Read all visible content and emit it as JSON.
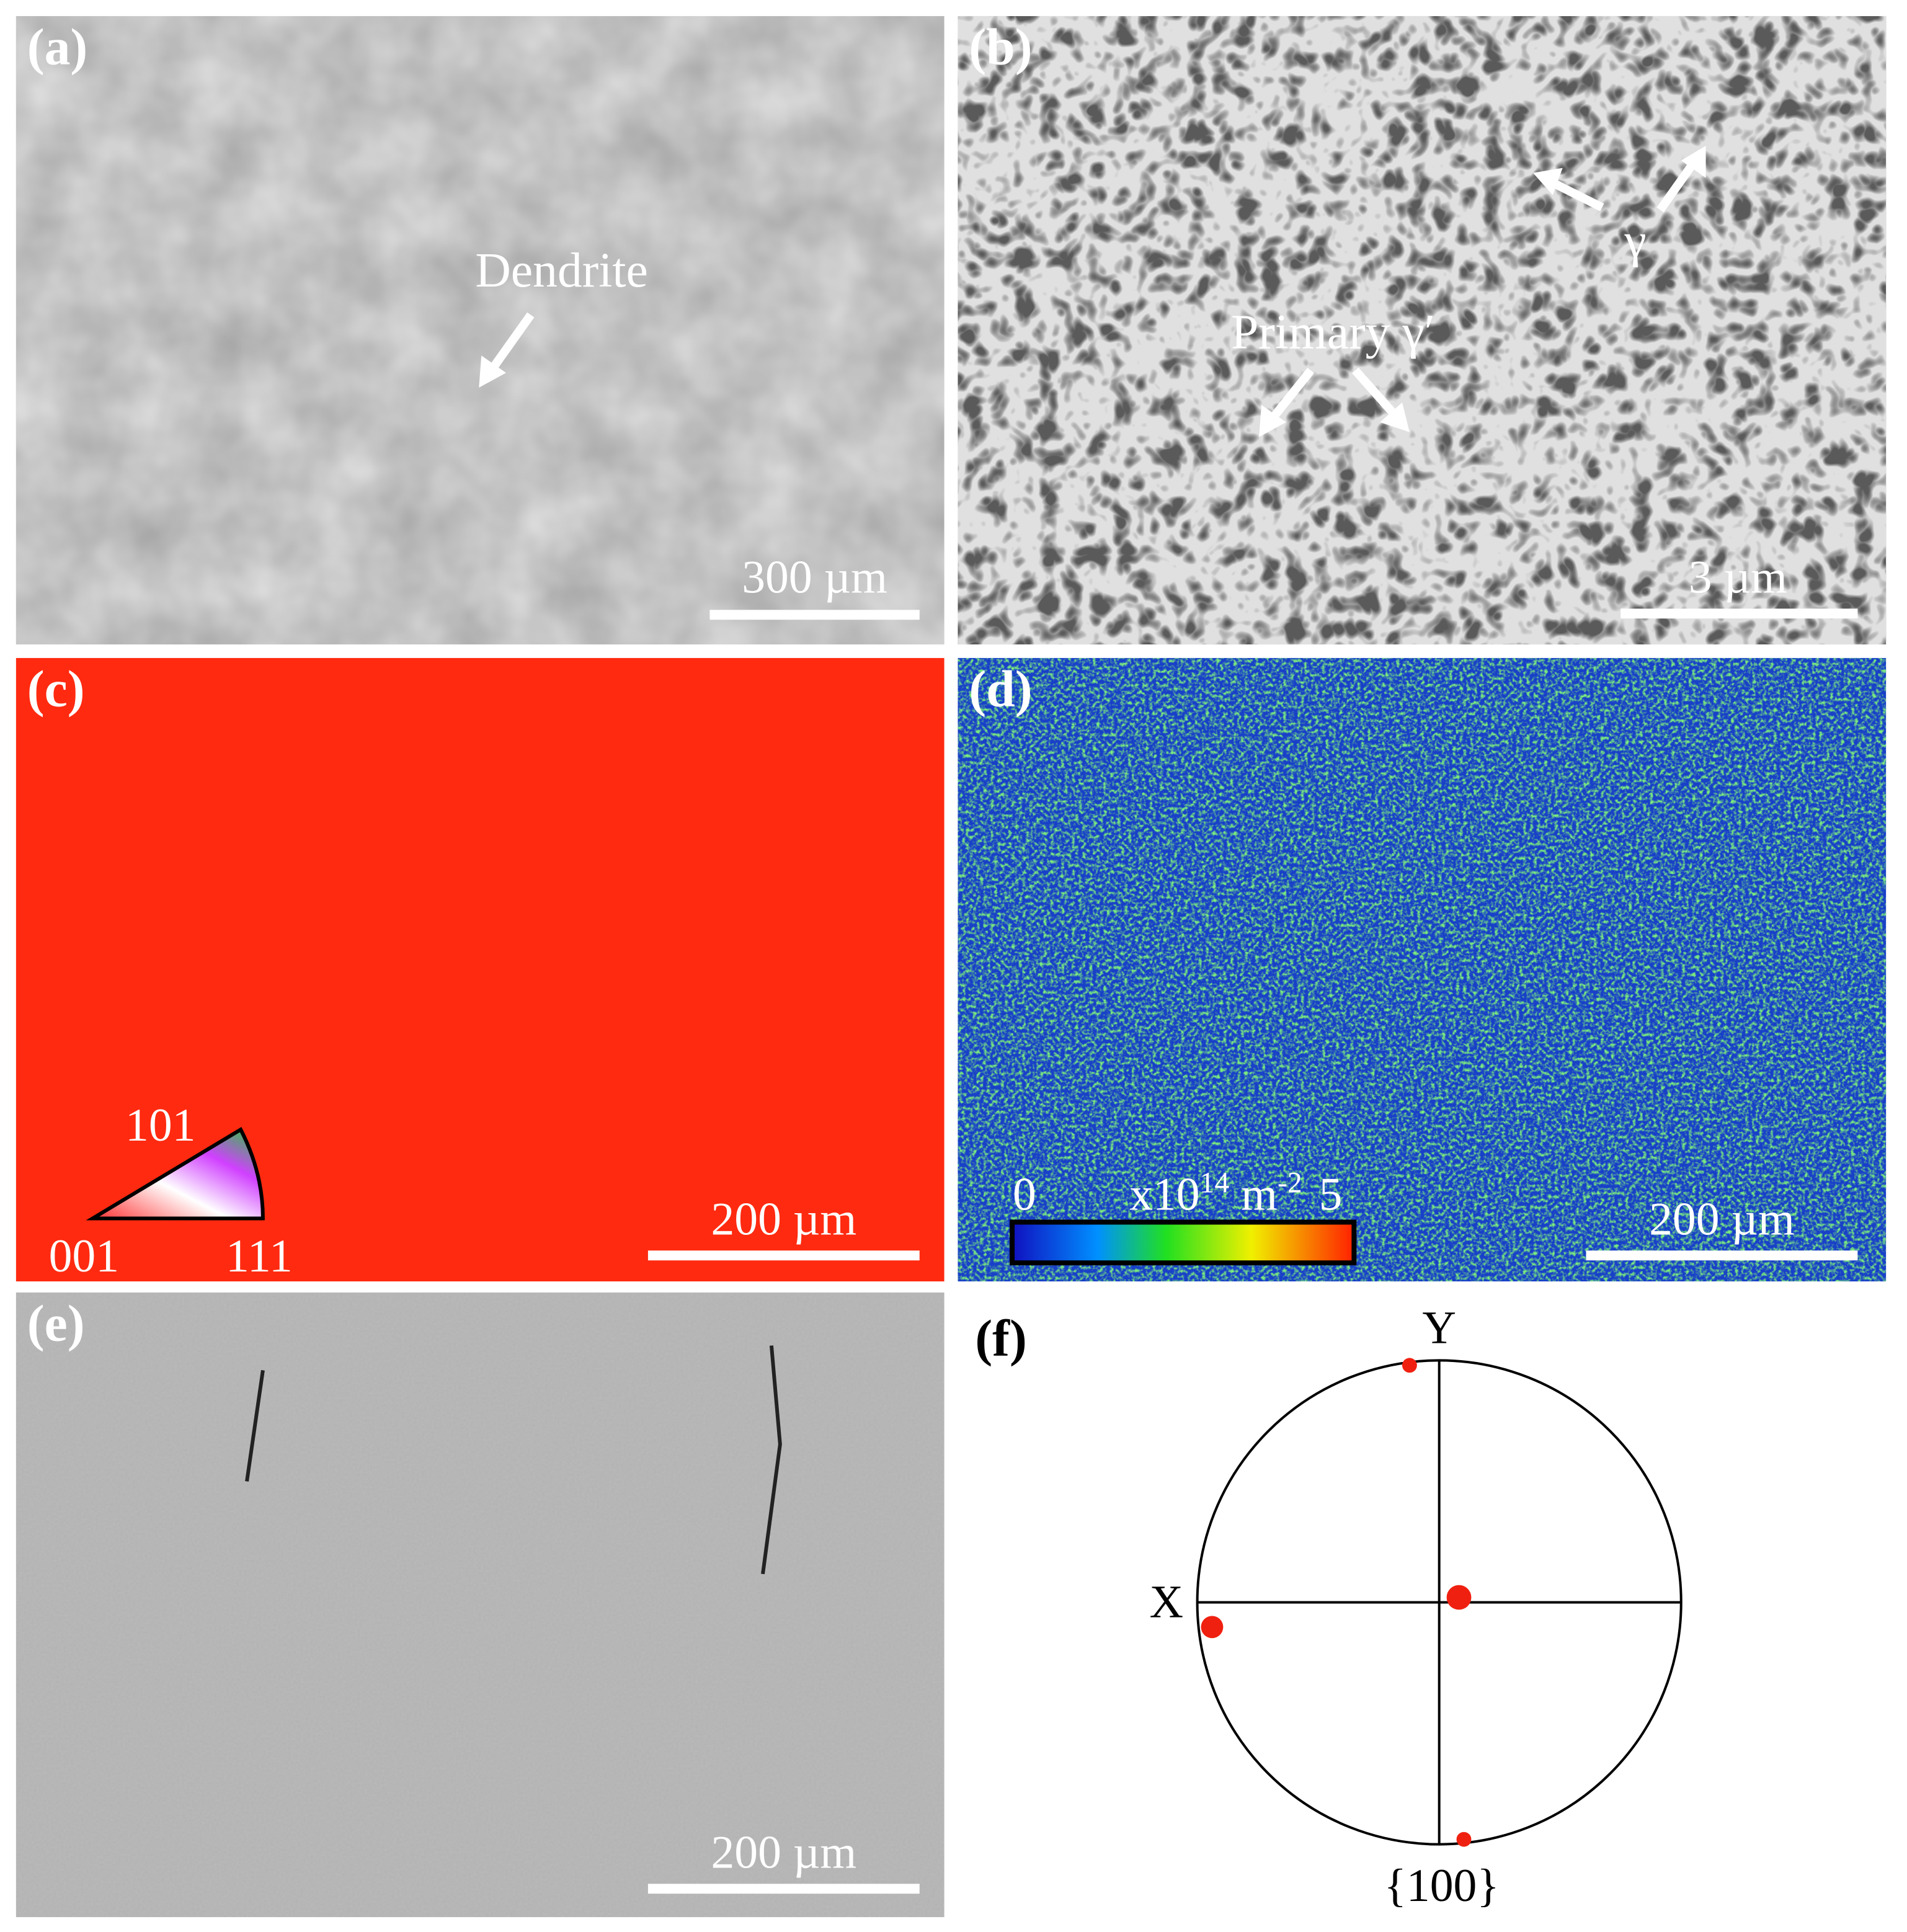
{
  "panels": [
    {
      "label": "(a)",
      "annotations": [
        "Dendrite"
      ],
      "scale_bar": "300 µm"
    },
    {
      "label": "(b)",
      "annotations": [
        "Primary γ′",
        "γ"
      ],
      "scale_bar": "3 µm"
    },
    {
      "label": "(c)",
      "ipf_legend": [
        "101",
        "001",
        "111"
      ],
      "scale_bar": "200 µm"
    },
    {
      "label": "(d)",
      "colorbar": {
        "min": "0",
        "unit": [
          "x10",
          "14",
          " m",
          "-2"
        ],
        "max": "5"
      },
      "scale_bar": "200 µm"
    },
    {
      "label": "(e)",
      "scale_bar": "200 µm"
    },
    {
      "label": "(f)",
      "axes": [
        "Y",
        "X"
      ],
      "caption": "{100}"
    }
  ]
}
